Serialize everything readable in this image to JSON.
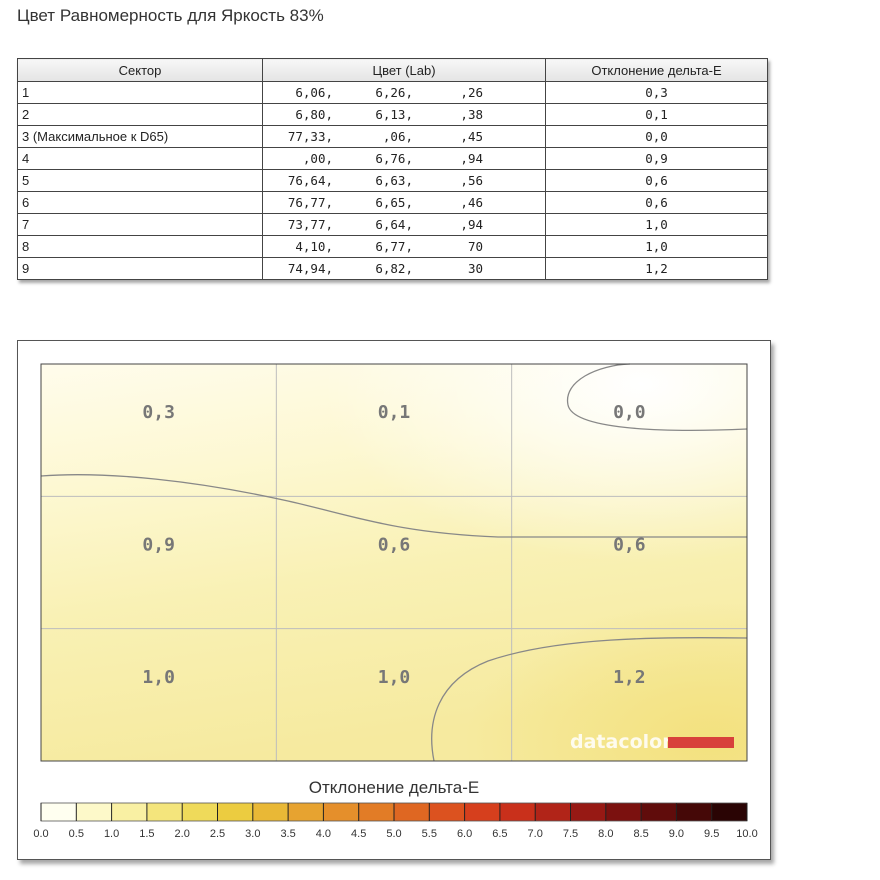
{
  "page": {
    "title": "Цвет Равномерность для Яркость 83%"
  },
  "table": {
    "headers": [
      "Сектор",
      "Цвет (Lab)",
      "Отклонение дельта-E"
    ],
    "rows": [
      {
        "sector": "1",
        "lab": [
          "6,06,",
          "6,26,",
          ",26"
        ],
        "de": "0,3"
      },
      {
        "sector": "2",
        "lab": [
          "6,80,",
          "6,13,",
          ",38"
        ],
        "de": "0,1"
      },
      {
        "sector": "3 (Максимальное к D65)",
        "lab": [
          "77,33,",
          ",06,",
          ",45"
        ],
        "de": "0,0"
      },
      {
        "sector": "4",
        "lab": [
          ",00,",
          "6,76,",
          ",94"
        ],
        "de": "0,9"
      },
      {
        "sector": "5",
        "lab": [
          "76,64,",
          "6,63,",
          ",56"
        ],
        "de": "0,6"
      },
      {
        "sector": "6",
        "lab": [
          "76,77,",
          "6,65,",
          ",46"
        ],
        "de": "0,6"
      },
      {
        "sector": "7",
        "lab": [
          "73,77,",
          "6,64,",
          ",94"
        ],
        "de": "1,0"
      },
      {
        "sector": "8",
        "lab": [
          "4,10,",
          "6,77,",
          "70"
        ],
        "de": "1,0"
      },
      {
        "sector": "9",
        "lab": [
          "74,94,",
          "6,82,",
          "30"
        ],
        "de": "1,2"
      }
    ]
  },
  "chart_data": {
    "type": "heatmap",
    "title": "",
    "grid": {
      "rows": 3,
      "cols": 3
    },
    "cells": [
      {
        "row": 0,
        "col": 0,
        "value": 0.3,
        "label": "0,3"
      },
      {
        "row": 0,
        "col": 1,
        "value": 0.1,
        "label": "0,1"
      },
      {
        "row": 0,
        "col": 2,
        "value": 0.0,
        "label": "0,0"
      },
      {
        "row": 1,
        "col": 0,
        "value": 0.9,
        "label": "0,9"
      },
      {
        "row": 1,
        "col": 1,
        "value": 0.6,
        "label": "0,6"
      },
      {
        "row": 1,
        "col": 2,
        "value": 0.6,
        "label": "0,6"
      },
      {
        "row": 2,
        "col": 0,
        "value": 1.0,
        "label": "1,0"
      },
      {
        "row": 2,
        "col": 1,
        "value": 1.0,
        "label": "1,0"
      },
      {
        "row": 2,
        "col": 2,
        "value": 1.2,
        "label": "1,2"
      }
    ],
    "watermark": "datacolor",
    "legend": {
      "title": "Отклонение дельта-E",
      "min": 0,
      "max": 10,
      "step": 0.5,
      "tick_labels": [
        "0.0",
        "0.5",
        "1.0",
        "1.5",
        "2.0",
        "2.5",
        "3.0",
        "3.5",
        "4.0",
        "4.5",
        "5.0",
        "5.5",
        "6.0",
        "6.5",
        "7.0",
        "7.5",
        "8.0",
        "8.5",
        "9.0",
        "9.5",
        "10.0"
      ],
      "colors": [
        "#fffff0",
        "#fdf9c9",
        "#f9f0a3",
        "#f4e57c",
        "#efda5a",
        "#eccc40",
        "#e9b836",
        "#e7a330",
        "#e58f2b",
        "#e27c26",
        "#df6722",
        "#dc521f",
        "#d63f1d",
        "#c9301b",
        "#b12418",
        "#971914",
        "#7b110f",
        "#600c0b",
        "#450807",
        "#2a0404"
      ]
    }
  },
  "colors": {
    "accent_red": "#d8413b",
    "grid": "#bdbdbd",
    "contour": "#888888"
  }
}
